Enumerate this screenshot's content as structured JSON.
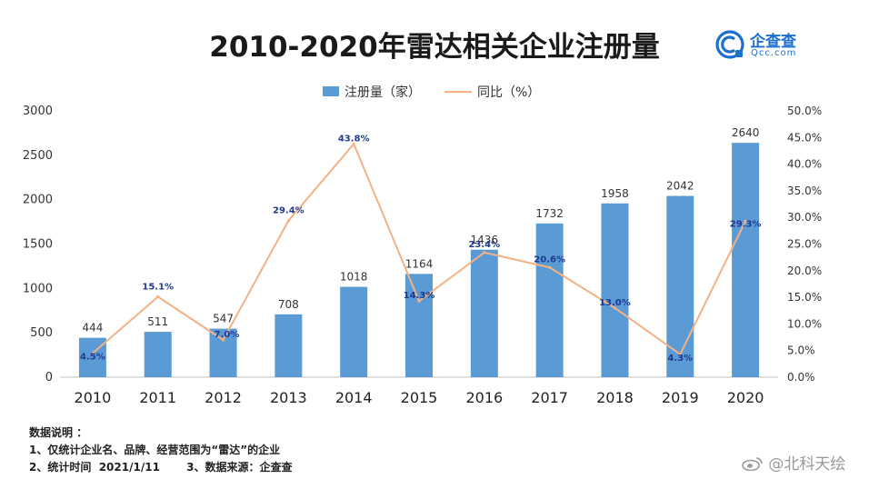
{
  "header": {
    "title": "2010-2020年雷达相关企业注册量"
  },
  "logo": {
    "name": "企查查",
    "domain": "Qcc.com",
    "brand_color": "#1b6fd1"
  },
  "legend": {
    "bar_label": "注册量（家）",
    "line_label": "同比（%）"
  },
  "chart_data": {
    "type": "bar",
    "categories": [
      "2010",
      "2011",
      "2012",
      "2013",
      "2014",
      "2015",
      "2016",
      "2017",
      "2018",
      "2019",
      "2020"
    ],
    "series": [
      {
        "name": "注册量（家）",
        "type": "bar",
        "axis": "left",
        "color": "#5b9bd5",
        "values": [
          444,
          511,
          547,
          708,
          1018,
          1164,
          1436,
          1732,
          1958,
          2042,
          2640
        ],
        "labels": [
          "444",
          "511",
          "547",
          "708",
          "1018",
          "1164",
          "1436",
          "1732",
          "1958",
          "2042",
          "2640"
        ]
      },
      {
        "name": "同比（%）",
        "type": "line",
        "axis": "right",
        "color": "#f4b183",
        "values": [
          4.5,
          15.1,
          7.0,
          29.4,
          43.8,
          14.3,
          23.4,
          20.6,
          13.0,
          4.3,
          29.3
        ],
        "labels": [
          "4.5%",
          "15.1%",
          "7.0%",
          "29.4%",
          "43.8%",
          "14.3%",
          "23.4%",
          "20.6%",
          "13.0%",
          "4.3%",
          "29.3%"
        ]
      }
    ],
    "left_axis": {
      "ylim": [
        0,
        3000
      ],
      "ticks": [
        0,
        500,
        1000,
        1500,
        2000,
        2500,
        3000
      ],
      "tick_labels": [
        "0",
        "500",
        "1000",
        "1500",
        "2000",
        "2500",
        "3000"
      ]
    },
    "right_axis": {
      "ylim": [
        0,
        50
      ],
      "ticks": [
        0,
        5,
        10,
        15,
        20,
        25,
        30,
        35,
        40,
        45,
        50
      ],
      "tick_labels": [
        "0.0%",
        "5.0%",
        "10.0%",
        "15.0%",
        "20.0%",
        "25.0%",
        "30.0%",
        "35.0%",
        "40.0%",
        "45.0%",
        "50.0%"
      ]
    },
    "grid": false,
    "legend_position": "top-center",
    "line_label_color": "#1f3a93",
    "axis_color": "#bfbfbf"
  },
  "notes": {
    "heading": "数据说明 ：",
    "line1": "1、仅统计企业名、品牌、经营范围为“雷达”的企业",
    "line2": "2、统计时间  2021/1/11       3、数据来源：企查查"
  },
  "watermark": {
    "text": "@北科天绘"
  }
}
